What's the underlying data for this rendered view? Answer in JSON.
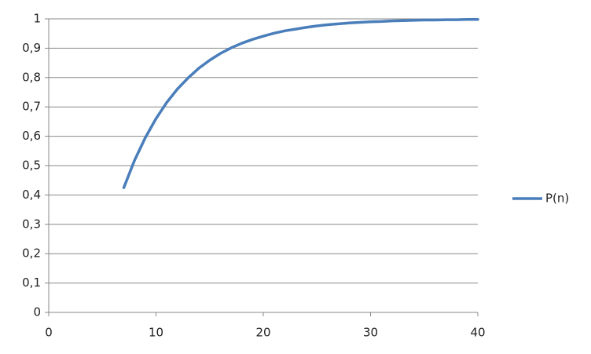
{
  "chart_data": {
    "type": "line",
    "x": [
      7,
      8,
      9,
      10,
      11,
      12,
      13,
      14,
      15,
      16,
      17,
      18,
      19,
      20,
      21,
      22,
      23,
      24,
      25,
      26,
      27,
      28,
      29,
      30,
      31,
      32,
      33,
      34,
      35,
      36,
      37,
      38,
      39,
      40
    ],
    "series": [
      {
        "name": "P(n)",
        "color": "#4a7ebb",
        "values": [
          0.425,
          0.518,
          0.595,
          0.66,
          0.715,
          0.761,
          0.799,
          0.832,
          0.859,
          0.882,
          0.901,
          0.917,
          0.93,
          0.941,
          0.951,
          0.959,
          0.965,
          0.971,
          0.976,
          0.98,
          0.983,
          0.986,
          0.988,
          0.99,
          0.991,
          0.993,
          0.994,
          0.995,
          0.996,
          0.996,
          0.997,
          0.997,
          0.998,
          0.998
        ]
      }
    ],
    "xlim": [
      0,
      40
    ],
    "xticks": [
      0,
      10,
      20,
      30,
      40
    ],
    "ylim": [
      0,
      1
    ],
    "yticks": [
      0,
      {
        "value": 0.1,
        "label": "0,1"
      },
      {
        "value": 0.2,
        "label": "0,2"
      },
      {
        "value": 0.3,
        "label": "0,3"
      },
      {
        "value": 0.4,
        "label": "0,4"
      },
      {
        "value": 0.5,
        "label": "0,5"
      },
      {
        "value": 0.6,
        "label": "0,6"
      },
      {
        "value": 0.7,
        "label": "0,7"
      },
      {
        "value": 0.8,
        "label": "0,8"
      },
      {
        "value": 0.9,
        "label": "0,9"
      },
      1
    ],
    "grid": true,
    "legend": "right"
  }
}
